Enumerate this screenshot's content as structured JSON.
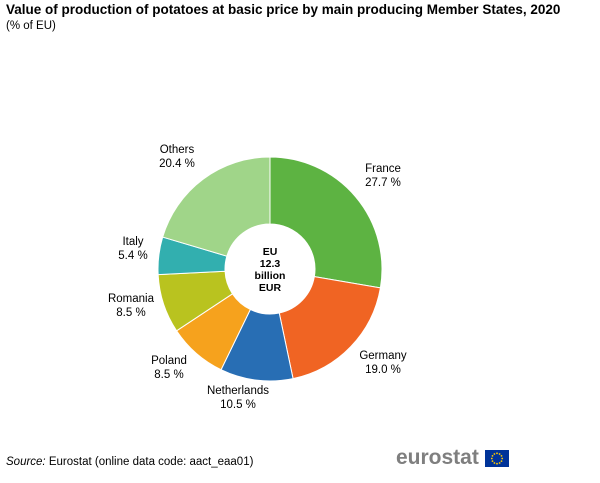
{
  "title": "Value of production of potatoes at basic price by main producing Member States, 2020",
  "subtitle": "(% of EU)",
  "chart_data": {
    "type": "pie",
    "donut": true,
    "center_label_lines": [
      "EU",
      "12.3",
      "billion",
      "EUR"
    ],
    "unit": "%",
    "slices": [
      {
        "label": "France",
        "value": 27.7,
        "value_text": "27.7 %",
        "color": "#5db342"
      },
      {
        "label": "Germany",
        "value": 19.0,
        "value_text": "19.0 %",
        "color": "#f06423"
      },
      {
        "label": "Netherlands",
        "value": 10.5,
        "value_text": "10.5 %",
        "color": "#286eb4"
      },
      {
        "label": "Poland",
        "value": 8.5,
        "value_text": "8.5 %",
        "color": "#f6a21d"
      },
      {
        "label": "Romania",
        "value": 8.5,
        "value_text": "8.5 %",
        "color": "#b9c31f"
      },
      {
        "label": "Italy",
        "value": 5.4,
        "value_text": "5.4 %",
        "color": "#32afaf"
      },
      {
        "label": "Others",
        "value": 20.4,
        "value_text": "20.4 %",
        "color": "#a0d589"
      }
    ]
  },
  "source": {
    "prefix": "Source:",
    "text": "Eurostat (online data code: aact_eaa01)"
  },
  "logo": {
    "text": "eurostat",
    "flag_color": "#003399",
    "star_color": "#ffcc00"
  }
}
